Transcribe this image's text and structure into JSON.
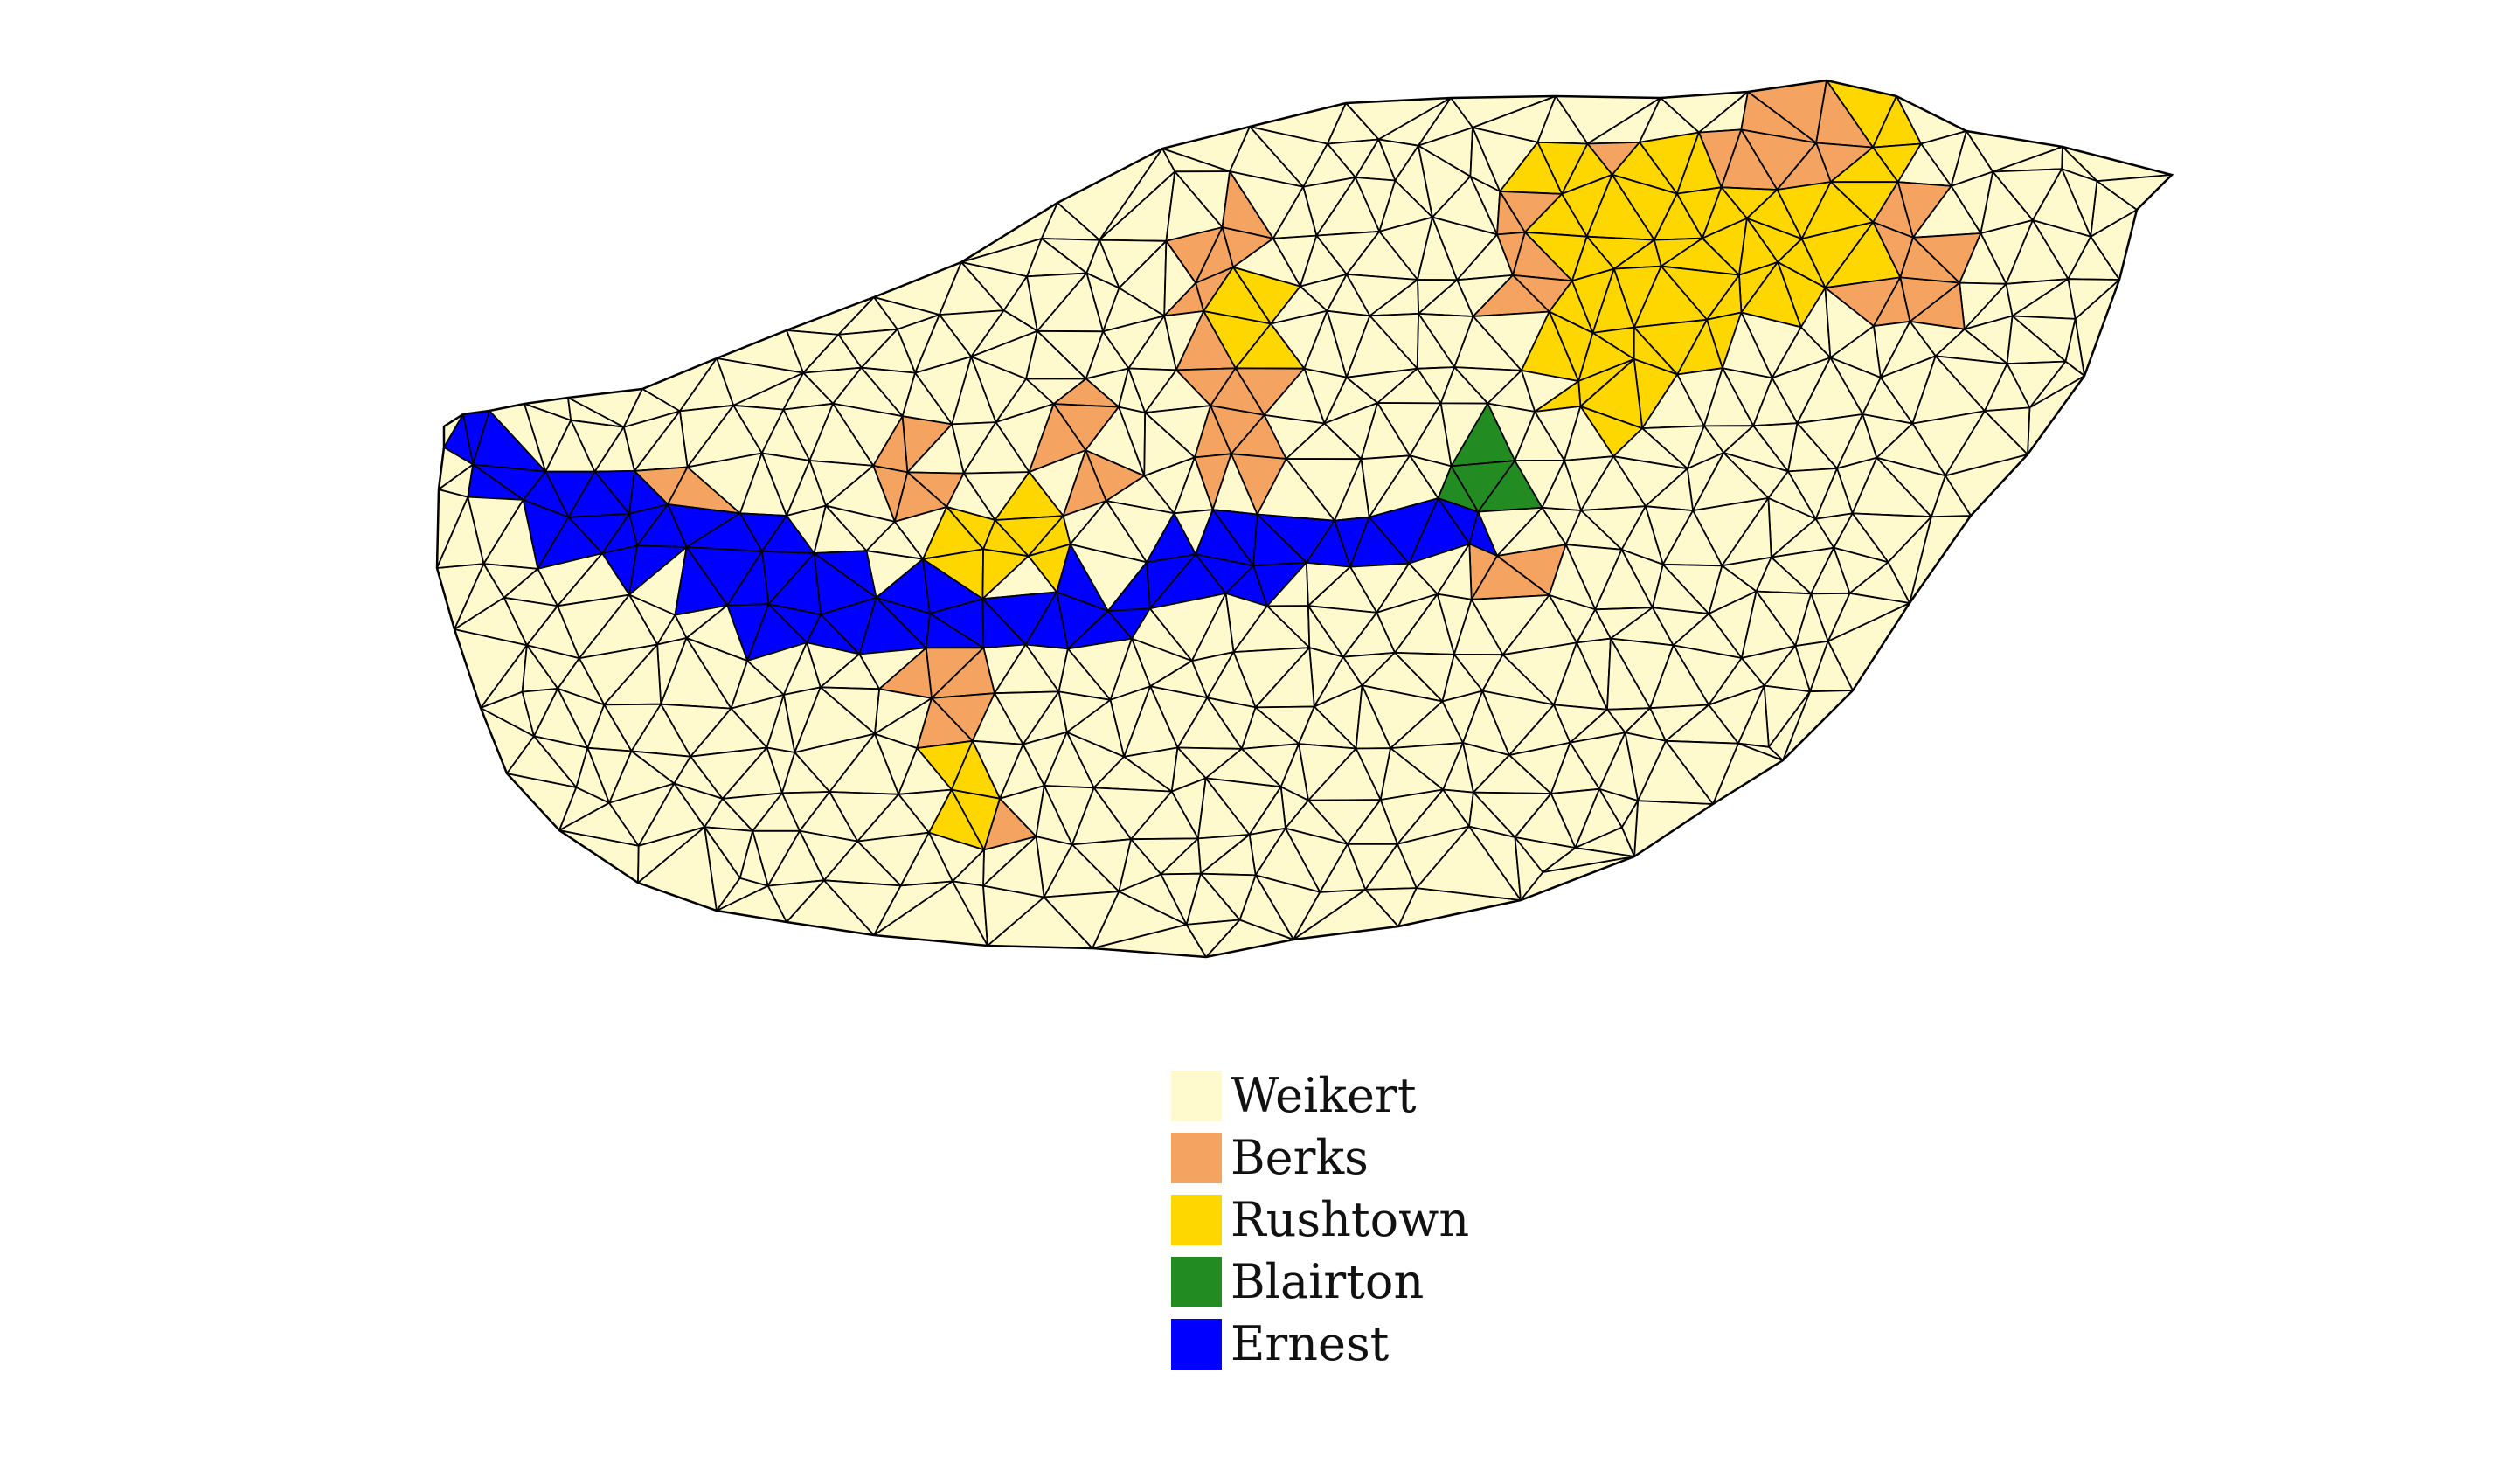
{
  "legend": {
    "items": [
      {
        "label": "Weikert",
        "color": "#FFFACD"
      },
      {
        "label": "Berks",
        "color": "#F4A460"
      },
      {
        "label": "Rushtown",
        "color": "#FFD700"
      },
      {
        "label": "Blairton",
        "color": "#228B22"
      },
      {
        "label": "Ernest",
        "color": "#0000FF"
      }
    ]
  },
  "colors": {
    "mesh_edge": "#000000",
    "background": "#FFFFFF"
  }
}
